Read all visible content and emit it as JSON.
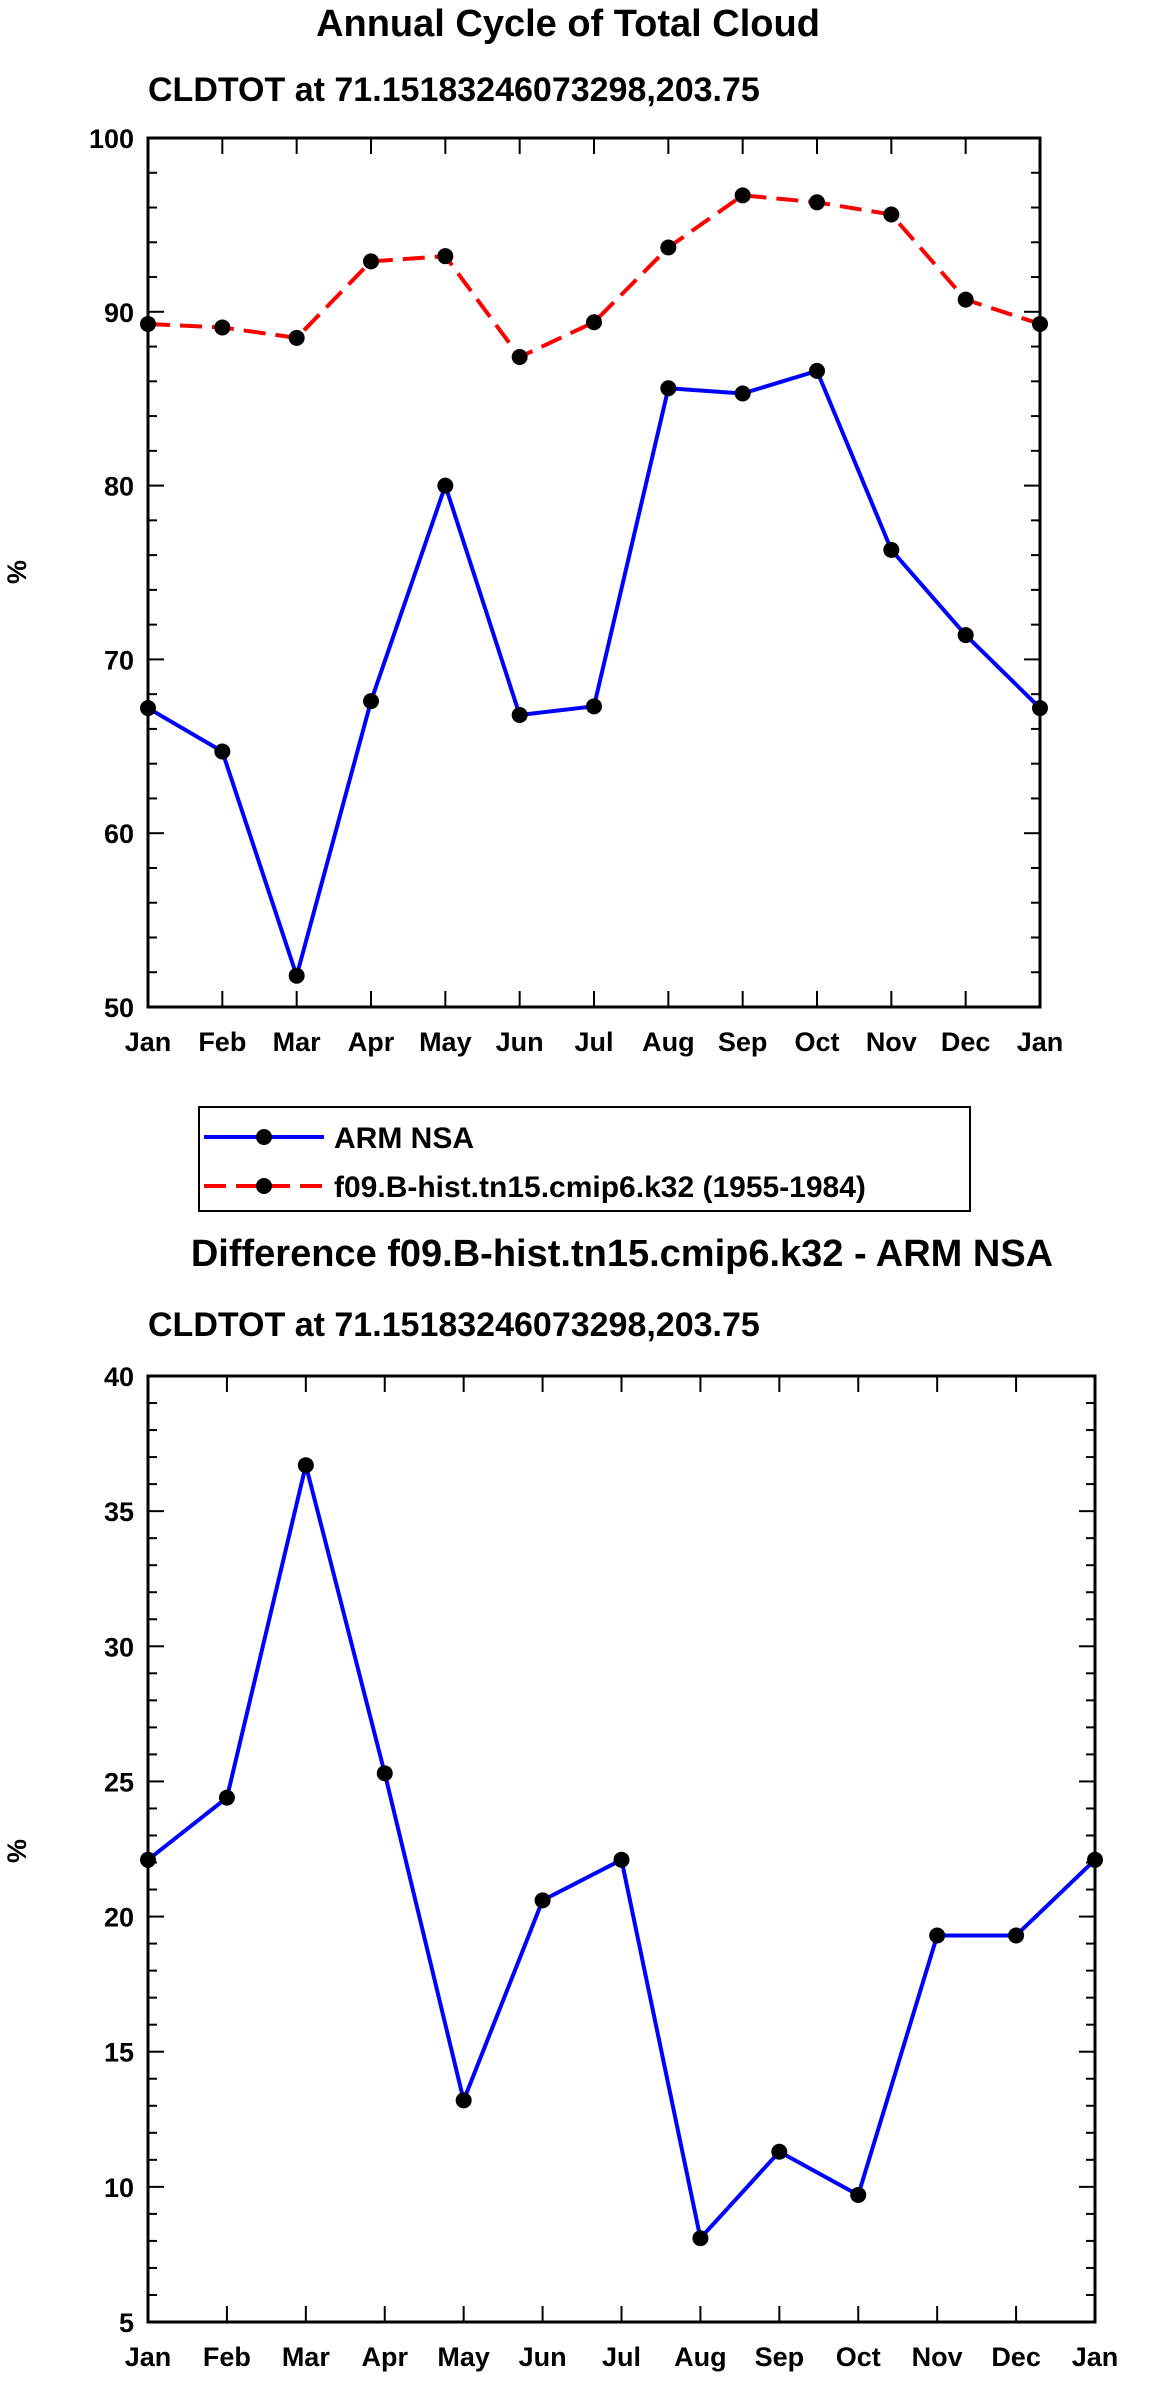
{
  "chart_data": [
    {
      "type": "line",
      "title": "Annual Cycle of Total Cloud",
      "subtitle": "CLDTOT at 71.15183246073298,203.75",
      "xlabel": "",
      "ylabel": "%",
      "categories": [
        "Jan",
        "Feb",
        "Mar",
        "Apr",
        "May",
        "Jun",
        "Jul",
        "Aug",
        "Sep",
        "Oct",
        "Nov",
        "Dec",
        "Jan"
      ],
      "ylim": [
        50,
        100
      ],
      "yticks": [
        50,
        60,
        70,
        80,
        90,
        100
      ],
      "ytick_labels": [
        "50",
        "60",
        "70",
        "80",
        "90",
        "100"
      ],
      "series": [
        {
          "name": "ARM NSA",
          "color": "#0000ff",
          "dash": "solid",
          "values": [
            67.2,
            64.7,
            51.8,
            67.6,
            80.0,
            66.8,
            67.3,
            85.6,
            85.3,
            86.6,
            76.3,
            71.4,
            67.2
          ]
        },
        {
          "name": "f09.B-hist.tn15.cmip6.k32 (1955-1984)",
          "color": "#ff0000",
          "dash": "dashed",
          "values": [
            89.3,
            89.1,
            88.5,
            92.9,
            93.2,
            87.4,
            89.4,
            93.7,
            96.7,
            96.3,
            95.6,
            90.7,
            89.3
          ]
        }
      ],
      "legend": {
        "position": "bottom-left",
        "items": [
          "ARM NSA",
          "f09.B-hist.tn15.cmip6.k32 (1955-1984)"
        ]
      }
    },
    {
      "type": "line",
      "title": "Difference f09.B-hist.tn15.cmip6.k32 - ARM NSA",
      "subtitle": "CLDTOT at 71.15183246073298,203.75",
      "xlabel": "",
      "ylabel": "%",
      "categories": [
        "Jan",
        "Feb",
        "Mar",
        "Apr",
        "May",
        "Jun",
        "Jul",
        "Aug",
        "Sep",
        "Oct",
        "Nov",
        "Dec",
        "Jan"
      ],
      "ylim": [
        5,
        40
      ],
      "yticks": [
        5,
        10,
        15,
        20,
        25,
        30,
        35,
        40
      ],
      "ytick_labels": [
        "5",
        "10",
        "15",
        "20",
        "25",
        "30",
        "35",
        "40"
      ],
      "series": [
        {
          "name": "Difference",
          "color": "#0000ff",
          "dash": "solid",
          "values": [
            22.1,
            24.4,
            36.7,
            25.3,
            13.2,
            20.6,
            22.1,
            8.1,
            11.3,
            9.7,
            19.3,
            19.3,
            22.1
          ]
        }
      ]
    }
  ]
}
